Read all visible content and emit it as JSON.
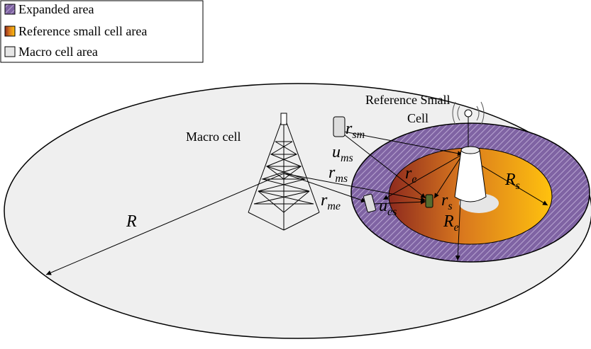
{
  "legend": [
    {
      "label": "Expanded area"
    },
    {
      "label": "Reference small cell area"
    },
    {
      "label": "Macro cell area"
    }
  ],
  "nodes": {
    "macro_cell": "Macro cell",
    "small_cell": [
      "Reference Small",
      "Cell"
    ]
  },
  "labels": {
    "R": {
      "main": "R"
    },
    "r_sm": {
      "main": "r",
      "sub": "sm"
    },
    "u_ms": {
      "main": "u",
      "sub": "ms"
    },
    "r_ms": {
      "main": "r",
      "sub": "ms"
    },
    "r_me": {
      "main": "r",
      "sub": "me"
    },
    "r_e": {
      "main": "r",
      "sub": "e"
    },
    "r_s": {
      "main": "r",
      "sub": "s"
    },
    "u_es": {
      "main": "u",
      "sub": "es"
    },
    "R_s": {
      "main": "R",
      "sub": "s"
    },
    "R_e": {
      "main": "R",
      "sub": "e"
    }
  }
}
